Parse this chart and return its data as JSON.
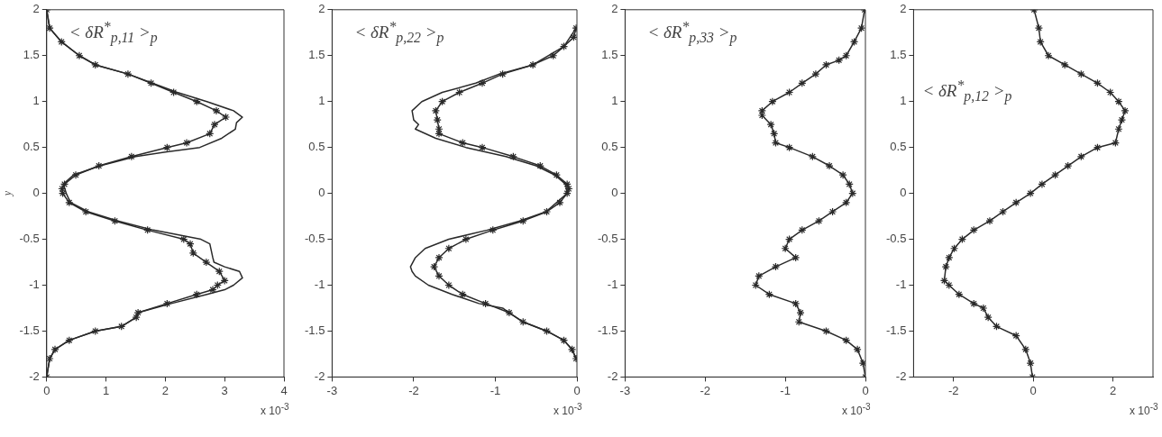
{
  "chart_data": [
    {
      "type": "line",
      "ylabel": "y",
      "annotations": [
        "< δR$^{*}$$_{p,11}$ >$_{p}$",
        "x 10$^{-3}$"
      ],
      "xlim": [
        0,
        4
      ],
      "xticks": [
        0,
        1,
        2,
        3,
        4
      ],
      "ylim": [
        -2,
        2
      ],
      "yticks": [
        -2,
        -1.5,
        -1,
        -0.5,
        0,
        0.5,
        1,
        1.5,
        2
      ],
      "grid": false,
      "legend": false,
      "series": [
        {
          "color": "#2a2a2a",
          "marker": "cross",
          "values": [
            2,
            1.8,
            1.65,
            1.5,
            1.4,
            1.3,
            1.2,
            1.1,
            1.0,
            0.9,
            0.83,
            0.75,
            0.65,
            0.55,
            0.5,
            0.4,
            0.3,
            0.2,
            0.1,
            0.05,
            0,
            -0.1,
            -0.2,
            -0.3,
            -0.4,
            -0.5,
            -0.55,
            -0.65,
            -0.75,
            -0.85,
            -0.95,
            -1.0,
            -1.05,
            -1.1,
            -1.2,
            -1.3,
            -1.35,
            -1.45,
            -1.5,
            -1.6,
            -1.7,
            -1.8,
            -2
          ],
          "x": [
            0,
            0.05,
            0.25,
            0.55,
            0.82,
            1.37,
            1.76,
            2.14,
            2.53,
            2.86,
            3.02,
            2.83,
            2.75,
            2.36,
            2.03,
            1.43,
            0.88,
            0.49,
            0.3,
            0.26,
            0.27,
            0.38,
            0.66,
            1.15,
            1.7,
            2.31,
            2.42,
            2.47,
            2.69,
            2.91,
            3.0,
            2.88,
            2.8,
            2.53,
            2.03,
            1.54,
            1.51,
            1.26,
            0.82,
            0.38,
            0.14,
            0.05,
            0
          ]
        },
        {
          "color": "#2a2a2a",
          "marker": "none",
          "values": [
            2,
            1.8,
            1.65,
            1.5,
            1.4,
            1.3,
            1.2,
            1.1,
            1.0,
            0.9,
            0.83,
            0.77,
            0.7,
            0.6,
            0.5,
            0.45,
            0.4,
            0.3,
            0.2,
            0.1,
            0,
            -0.1,
            -0.2,
            -0.3,
            -0.4,
            -0.5,
            -0.55,
            -0.7,
            -0.75,
            -0.8,
            -0.85,
            -0.92,
            -1.0,
            -1.05,
            -1.1,
            -1.2,
            -1.3,
            -1.35,
            -1.45,
            -1.5,
            -1.6,
            -1.7,
            -1.8,
            -2
          ],
          "x": [
            0,
            0.05,
            0.25,
            0.55,
            0.82,
            1.37,
            1.78,
            2.2,
            2.7,
            3.15,
            3.3,
            3.2,
            3.18,
            2.95,
            2.58,
            2.0,
            1.5,
            0.9,
            0.45,
            0.28,
            0.33,
            0.4,
            0.7,
            1.2,
            1.8,
            2.6,
            2.75,
            2.8,
            2.82,
            3.0,
            3.25,
            3.3,
            3.15,
            3.0,
            2.7,
            2.1,
            1.54,
            1.51,
            1.26,
            0.82,
            0.38,
            0.14,
            0.05,
            0
          ]
        }
      ]
    },
    {
      "type": "line",
      "annotations": [
        "< δR$^{*}$$_{p,22}$ >$_{p}$",
        "x 10$^{-3}$"
      ],
      "xlim": [
        -3,
        0
      ],
      "xticks": [
        -3,
        -2,
        -1,
        0
      ],
      "ylim": [
        -2,
        2
      ],
      "yticks": [
        -2,
        -1.5,
        -1,
        -0.5,
        0,
        0.5,
        1,
        1.5,
        2
      ],
      "grid": false,
      "legend": false,
      "series": [
        {
          "color": "#2a2a2a",
          "marker": "cross",
          "values": [
            1.8,
            1.7,
            1.6,
            1.5,
            1.4,
            1.3,
            1.2,
            1.1,
            1.0,
            0.9,
            0.8,
            0.7,
            0.65,
            0.55,
            0.5,
            0.4,
            0.3,
            0.2,
            0.1,
            0.05,
            0,
            -0.1,
            -0.2,
            -0.3,
            -0.4,
            -0.5,
            -0.6,
            -0.7,
            -0.8,
            -0.9,
            -1.0,
            -1.1,
            -1.2,
            -1.3,
            -1.4,
            -1.5,
            -1.6,
            -1.7,
            -1.8
          ],
          "x": [
            -0.01,
            -0.04,
            -0.16,
            -0.29,
            -0.54,
            -0.91,
            -1.16,
            -1.44,
            -1.65,
            -1.73,
            -1.71,
            -1.69,
            -1.69,
            -1.4,
            -1.16,
            -0.78,
            -0.45,
            -0.25,
            -0.12,
            -0.1,
            -0.12,
            -0.21,
            -0.37,
            -0.66,
            -1.03,
            -1.36,
            -1.57,
            -1.69,
            -1.75,
            -1.69,
            -1.57,
            -1.4,
            -1.12,
            -0.83,
            -0.66,
            -0.37,
            -0.16,
            -0.06,
            -0.01
          ]
        },
        {
          "color": "#2a2a2a",
          "marker": "none",
          "values": [
            1.8,
            1.6,
            1.4,
            1.3,
            1.2,
            1.1,
            1.0,
            0.9,
            0.8,
            0.75,
            0.7,
            0.6,
            0.5,
            0.4,
            0.3,
            0.2,
            0.1,
            0,
            -0.2,
            -0.3,
            -0.4,
            -0.5,
            -0.6,
            -0.7,
            -0.8,
            -0.85,
            -0.9,
            -1.0,
            -1.1,
            -1.2,
            -1.25,
            -1.3,
            -1.4,
            -1.5,
            -1.6,
            -1.7,
            -1.8
          ],
          "x": [
            -0.01,
            -0.16,
            -0.54,
            -0.95,
            -1.24,
            -1.65,
            -1.9,
            -2.02,
            -2.0,
            -1.94,
            -1.98,
            -1.73,
            -1.36,
            -0.87,
            -0.5,
            -0.27,
            -0.14,
            -0.12,
            -0.38,
            -0.7,
            -1.1,
            -1.57,
            -1.86,
            -1.98,
            -2.04,
            -2.02,
            -1.98,
            -1.82,
            -1.53,
            -1.2,
            -0.91,
            -0.83,
            -0.66,
            -0.37,
            -0.16,
            -0.06,
            -0.01
          ]
        }
      ]
    },
    {
      "type": "line",
      "annotations": [
        "< δR$^{*}$$_{p,33}$ >$_{p}$",
        "x 10$^{-3}$"
      ],
      "xlim": [
        -3,
        0
      ],
      "xticks": [
        -3,
        -2,
        -1,
        0
      ],
      "ylim": [
        -2,
        2
      ],
      "yticks": [
        -2,
        -1.5,
        -1,
        -0.5,
        0,
        0.5,
        1,
        1.5,
        2
      ],
      "grid": false,
      "legend": false,
      "series": [
        {
          "color": "#2a2a2a",
          "marker": "cross",
          "values": [
            2,
            1.8,
            1.65,
            1.5,
            1.45,
            1.4,
            1.3,
            1.2,
            1.1,
            1.0,
            0.9,
            0.85,
            0.75,
            0.65,
            0.55,
            0.5,
            0.4,
            0.3,
            0.2,
            0.1,
            0,
            -0.1,
            -0.2,
            -0.3,
            -0.4,
            -0.5,
            -0.6,
            -0.7,
            -0.8,
            -0.9,
            -1.0,
            -1.1,
            -1.2,
            -1.3,
            -1.4,
            -1.5,
            -1.6,
            -1.7,
            -1.85,
            -2
          ],
          "x": [
            -0.01,
            -0.05,
            -0.14,
            -0.24,
            -0.33,
            -0.49,
            -0.62,
            -0.79,
            -0.95,
            -1.16,
            -1.29,
            -1.29,
            -1.18,
            -1.14,
            -1.12,
            -0.95,
            -0.66,
            -0.45,
            -0.28,
            -0.2,
            -0.16,
            -0.24,
            -0.41,
            -0.58,
            -0.79,
            -0.95,
            -1.0,
            -0.87,
            -1.12,
            -1.33,
            -1.37,
            -1.2,
            -0.87,
            -0.81,
            -0.83,
            -0.49,
            -0.24,
            -0.1,
            -0.03,
            0
          ]
        }
      ]
    },
    {
      "type": "line",
      "annotations": [
        "< δR$^{*}$$_{p,12}$ >$_{p}$",
        "x 10$^{-3}$"
      ],
      "xlim": [
        -3,
        3
      ],
      "xticks": [
        -2,
        0,
        2
      ],
      "ylim": [
        -2,
        2
      ],
      "yticks": [
        -2,
        -1.5,
        -1,
        -0.5,
        0,
        0.5,
        1,
        1.5,
        2
      ],
      "grid": false,
      "legend": false,
      "series": [
        {
          "color": "#2a2a2a",
          "marker": "cross",
          "values": [
            2,
            1.8,
            1.65,
            1.5,
            1.4,
            1.3,
            1.2,
            1.1,
            1.0,
            0.9,
            0.8,
            0.7,
            0.55,
            0.5,
            0.4,
            0.3,
            0.2,
            0.1,
            0,
            -0.1,
            -0.2,
            -0.3,
            -0.4,
            -0.5,
            -0.6,
            -0.7,
            -0.8,
            -0.95,
            -1.0,
            -1.1,
            -1.2,
            -1.25,
            -1.35,
            -1.45,
            -1.55,
            -1.7,
            -1.85,
            -2
          ],
          "x": [
            0.02,
            0.14,
            0.18,
            0.38,
            0.79,
            1.2,
            1.61,
            1.93,
            2.14,
            2.3,
            2.22,
            2.14,
            2.06,
            1.61,
            1.2,
            0.87,
            0.55,
            0.22,
            -0.07,
            -0.43,
            -0.76,
            -1.09,
            -1.49,
            -1.78,
            -1.98,
            -2.11,
            -2.19,
            -2.23,
            -2.11,
            -1.86,
            -1.49,
            -1.25,
            -1.13,
            -0.92,
            -0.43,
            -0.19,
            -0.07,
            -0.02
          ]
        }
      ]
    }
  ]
}
